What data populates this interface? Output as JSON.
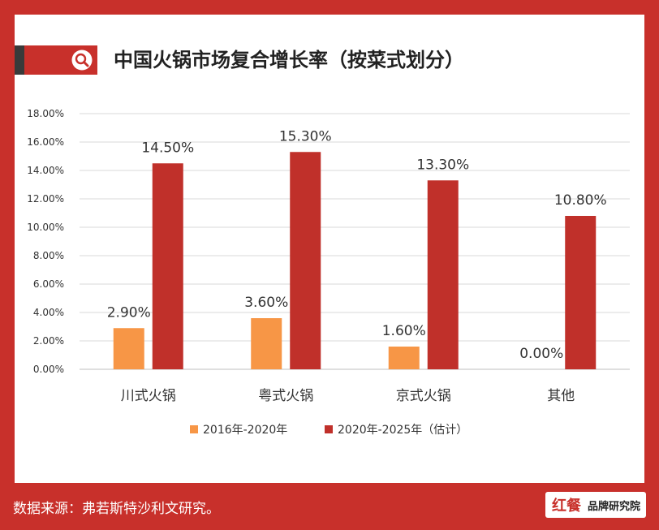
{
  "header": {
    "title": "中国火锅市场复合增长率（按菜式划分）",
    "icon": "search-icon",
    "accent_color": "#c8302b"
  },
  "chart_data": {
    "type": "bar",
    "title": "中国火锅市场复合增长率（按菜式划分）",
    "categories": [
      "川式火锅",
      "粤式火锅",
      "京式火锅",
      "其他"
    ],
    "series": [
      {
        "name": "2016年-2020年",
        "color": "#f79646",
        "values": [
          2.9,
          3.6,
          1.6,
          0.0
        ],
        "labels": [
          "2.90%",
          "3.60%",
          "1.60%",
          "0.00%"
        ]
      },
      {
        "name": "2020年-2025年（估计）",
        "color": "#c0302a",
        "values": [
          14.5,
          15.3,
          13.3,
          10.8
        ],
        "labels": [
          "14.50%",
          "15.30%",
          "13.30%",
          "10.80%"
        ]
      }
    ],
    "ylim": [
      0,
      18
    ],
    "yticks": [
      "0.00%",
      "2.00%",
      "4.00%",
      "6.00%",
      "8.00%",
      "10.00%",
      "12.00%",
      "14.00%",
      "16.00%",
      "18.00%"
    ],
    "grid": true,
    "legend": "bottom"
  },
  "footer": {
    "source": "数据来源：弗若斯特沙利文研究。",
    "brand_logo": "红餐",
    "brand_name": "品牌研究院"
  }
}
